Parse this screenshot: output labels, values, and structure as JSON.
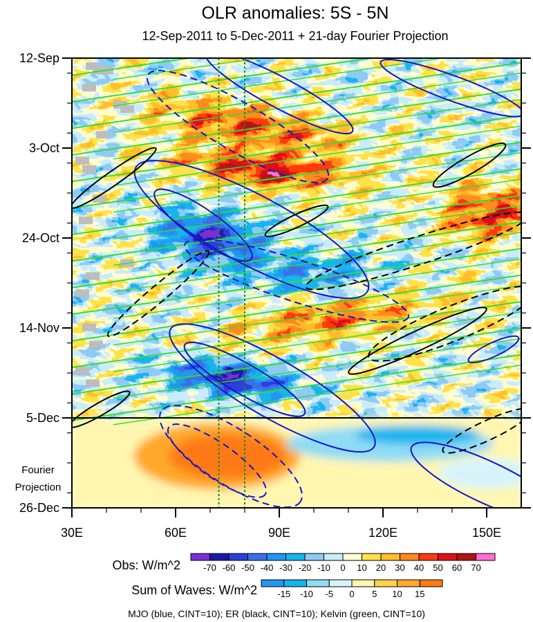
{
  "chart_data": {
    "type": "heatmap",
    "title": "OLR anomalies: 5S - 5N",
    "subtitle": "12-Sep-2011 to 5-Dec-2011 + 21-day Fourier Projection",
    "x_axis": {
      "label": "",
      "range": [
        30,
        160
      ],
      "ticks": [
        {
          "value": 30,
          "label": "30E"
        },
        {
          "value": 60,
          "label": "60E"
        },
        {
          "value": 90,
          "label": "90E"
        },
        {
          "value": 120,
          "label": "120E"
        },
        {
          "value": 150,
          "label": "150E"
        }
      ]
    },
    "y_axis": {
      "unit": "days since 12-Sep-2011",
      "range": [
        0,
        105
      ],
      "ticks": [
        {
          "value": 0,
          "label": "12-Sep"
        },
        {
          "value": 21,
          "label": "3-Oct"
        },
        {
          "value": 42,
          "label": "24-Oct"
        },
        {
          "value": 63,
          "label": "14-Nov"
        },
        {
          "value": 84,
          "label": "5-Dec"
        },
        {
          "value": 105,
          "label": "26-Dec"
        }
      ]
    },
    "projection_label_lines": [
      "Fourier",
      "Projection"
    ],
    "projection_start_day": 84,
    "reference_longitudes": [
      72.5,
      80
    ],
    "obs_colorbar": {
      "label": "Obs: W/m^2",
      "levels": [
        "-70",
        "-60",
        "-50",
        "-40",
        "-30",
        "-20",
        "-10",
        "0",
        "10",
        "20",
        "30",
        "40",
        "50",
        "60",
        "70"
      ],
      "colors": [
        "#7b2fd6",
        "#1a1aa6",
        "#2a3fd8",
        "#3a6fe8",
        "#2196f3",
        "#12b5ee",
        "#8fcaf5",
        "#c9ecfb",
        "#fffdd0",
        "#ffe14a",
        "#ffbe2a",
        "#ff8c1a",
        "#ff3a10",
        "#e0101a",
        "#b01515",
        "#ff6fd6"
      ]
    },
    "waves_colorbar": {
      "label": "Sum of Waves: W/m^2",
      "levels": [
        "-15",
        "-10",
        "-5",
        "0",
        "5",
        "10",
        "15"
      ],
      "colors": [
        "#2196f3",
        "#12b5ee",
        "#8fdcf5",
        "#d8f4fb",
        "#fff6b0",
        "#ffd34a",
        "#ffa82a",
        "#ff7a12"
      ]
    },
    "contour_legend": "MJO (blue, CINT=10); ER (black, CINT=10); Kelvin (green, CINT=10)",
    "colors": {
      "mjo": "#1414c8",
      "er": "#000000",
      "kelvin": "#33dd33",
      "reference_line": "#1a8a1a",
      "missing": "#bdbdbd"
    }
  }
}
